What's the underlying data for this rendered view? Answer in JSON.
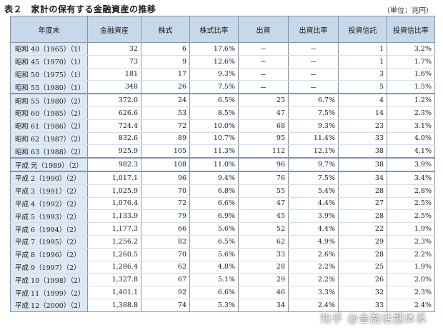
{
  "title": "表２　家計の保有する金融資産の推移",
  "unit": "（単位：兆円）",
  "headers": [
    "年度末",
    "金融資産",
    "株式",
    "株式比率",
    "出資",
    "出資比率",
    "投資信託",
    "投資信比率"
  ],
  "rows": [
    [
      "昭和 40（1965）（1）",
      "32",
      "6",
      "17.6%",
      "－",
      "－",
      "1",
      "3.2%"
    ],
    [
      "昭和 45（1970）（1）",
      "73",
      "9",
      "12.6%",
      "－",
      "－",
      "1",
      "1.7%"
    ],
    [
      "昭和 50（1975）（1）",
      "181",
      "17",
      "9.3%",
      "－",
      "－",
      "3",
      "1.6%"
    ],
    [
      "昭和 55（1980）（1）",
      "348",
      "26",
      "7.5%",
      "－",
      "－",
      "5",
      "1.5%"
    ],
    [
      "昭和 55（1980）（2）",
      "372.0",
      "24",
      "6.5%",
      "25",
      "6.7%",
      "4",
      "1.2%"
    ],
    [
      "昭和 60（1985）（2）",
      "626.6",
      "53",
      "8.5%",
      "47",
      "7.5%",
      "14",
      "2.3%"
    ],
    [
      "昭和 61（1986）（2）",
      "724.4",
      "72",
      "10.0%",
      "68",
      "9.3%",
      "23",
      "3.1%"
    ],
    [
      "昭和 62（1987）（2）",
      "832.6",
      "89",
      "10.7%",
      "95",
      "11.4%",
      "33",
      "4.0%"
    ],
    [
      "昭和 63（1988）（2）",
      "925.9",
      "105",
      "11.3%",
      "112",
      "12.1%",
      "38",
      "4.1%"
    ],
    [
      "平成 元（1989）（2）",
      "982.3",
      "108",
      "11.0%",
      "96",
      "9.7%",
      "38",
      "3.9%"
    ],
    [
      "平成 2（1990）（2）",
      "1,017.1",
      "96",
      "9.4%",
      "76",
      "7.5%",
      "34",
      "3.4%"
    ],
    [
      "平成 3（1991）（2）",
      "1,025.9",
      "70",
      "6.8%",
      "55",
      "5.4%",
      "28",
      "2.8%"
    ],
    [
      "平成 4（1992）（2）",
      "1,076.4",
      "72",
      "6.6%",
      "47",
      "4.4%",
      "27",
      "2.5%"
    ],
    [
      "平成 5（1993）（2）",
      "1,133.9",
      "79",
      "6.9%",
      "45",
      "3.9%",
      "28",
      "2.5%"
    ],
    [
      "平成 6（1994）（2）",
      "1,177.3",
      "66",
      "5.6%",
      "52",
      "4.4%",
      "22",
      "1.9%"
    ],
    [
      "平成 7（1995）（2）",
      "1,256.2",
      "82",
      "6.5%",
      "62",
      "4.9%",
      "29",
      "2.3%"
    ],
    [
      "平成 8（1996）（2）",
      "1,260.5",
      "70",
      "5.6%",
      "33",
      "2.6%",
      "28",
      "2.2%"
    ],
    [
      "平成 9（1997）（2）",
      "1,286.4",
      "62",
      "4.8%",
      "28",
      "2.2%",
      "25",
      "1.9%"
    ],
    [
      "平成 10（1998）（2）",
      "1,327.8",
      "67",
      "5.1%",
      "29",
      "2.2%",
      "26",
      "2.0%"
    ],
    [
      "平成 11（1999）（2）",
      "1,401.1",
      "92",
      "6.6%",
      "46",
      "3.3%",
      "32",
      "2.3%"
    ],
    [
      "平成 12（2000）（2）",
      "1,388.8",
      "74",
      "5.3%",
      "34",
      "2.4%",
      "33",
      "2.4%"
    ]
  ],
  "watermark": "知乎 @金融话题体系",
  "colors": {
    "header_bg": "#c6d8ea",
    "year_col_bg": "#dde8f3",
    "border": "#7d97b3"
  }
}
